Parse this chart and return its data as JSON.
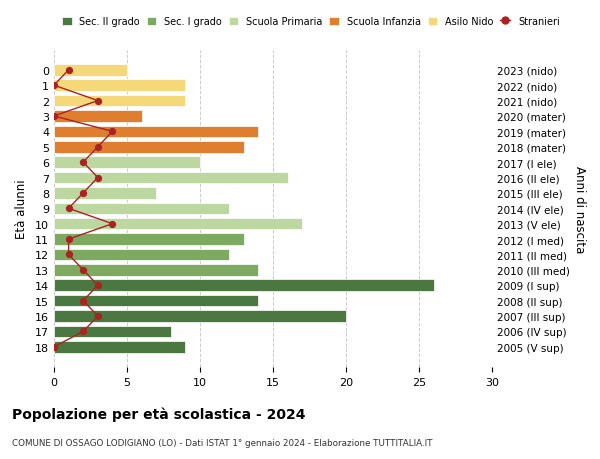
{
  "ages": [
    18,
    17,
    16,
    15,
    14,
    13,
    12,
    11,
    10,
    9,
    8,
    7,
    6,
    5,
    4,
    3,
    2,
    1,
    0
  ],
  "right_labels": [
    "2005 (V sup)",
    "2006 (IV sup)",
    "2007 (III sup)",
    "2008 (II sup)",
    "2009 (I sup)",
    "2010 (III med)",
    "2011 (II med)",
    "2012 (I med)",
    "2013 (V ele)",
    "2014 (IV ele)",
    "2015 (III ele)",
    "2016 (II ele)",
    "2017 (I ele)",
    "2018 (mater)",
    "2019 (mater)",
    "2020 (mater)",
    "2021 (nido)",
    "2022 (nido)",
    "2023 (nido)"
  ],
  "bar_values": [
    9,
    8,
    20,
    14,
    26,
    14,
    12,
    13,
    17,
    12,
    7,
    16,
    10,
    13,
    14,
    6,
    9,
    9,
    5
  ],
  "bar_colors": [
    "#4a7840",
    "#4a7840",
    "#4a7840",
    "#4a7840",
    "#4a7840",
    "#7daa60",
    "#7daa60",
    "#7daa60",
    "#bcd8a0",
    "#bcd8a0",
    "#bcd8a0",
    "#bcd8a0",
    "#bcd8a0",
    "#e07e30",
    "#e07e30",
    "#e07e30",
    "#f5d87a",
    "#f5d87a",
    "#f5d87a"
  ],
  "stranieri_values": [
    0,
    2,
    3,
    2,
    3,
    2,
    1,
    1,
    4,
    1,
    2,
    3,
    2,
    3,
    4,
    0,
    3,
    0,
    1
  ],
  "stranieri_color": "#aa2222",
  "legend_labels": [
    "Sec. II grado",
    "Sec. I grado",
    "Scuola Primaria",
    "Scuola Infanzia",
    "Asilo Nido",
    "Stranieri"
  ],
  "legend_colors": [
    "#4a7840",
    "#7daa60",
    "#bcd8a0",
    "#e07e30",
    "#f5d87a",
    "#aa2222"
  ],
  "ylabel_left": "Età alunni",
  "ylabel_right": "Anni di nascita",
  "title": "Popolazione per età scolastica - 2024",
  "subtitle": "COMUNE DI OSSAGO LODIGIANO (LO) - Dati ISTAT 1° gennaio 2024 - Elaborazione TUTTITALIA.IT",
  "xlim": [
    0,
    30
  ],
  "xticks": [
    0,
    5,
    10,
    15,
    20,
    25,
    30
  ],
  "bg_color": "#ffffff",
  "grid_color": "#cccccc"
}
